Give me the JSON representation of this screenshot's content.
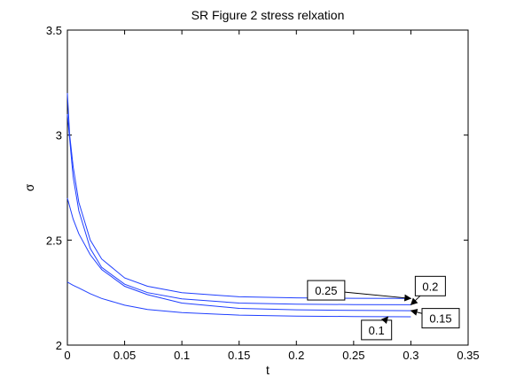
{
  "chart_data": {
    "type": "line",
    "title": "SR Figure 2 stress relxation",
    "xlabel": "t",
    "ylabel": "σ",
    "xlim": [
      0,
      0.35
    ],
    "ylim": [
      2,
      3.5
    ],
    "xticks": [
      0,
      0.05,
      0.1,
      0.15,
      0.2,
      0.25,
      0.3,
      0.35
    ],
    "xtick_labels": [
      "0",
      "0.05",
      "0.1",
      "0.15",
      "0.2",
      "0.25",
      "0.3",
      "0.35"
    ],
    "yticks": [
      2,
      2.5,
      3,
      3.5
    ],
    "ytick_labels": [
      "2",
      "2.5",
      "3",
      "3.5"
    ],
    "grid": false,
    "line_color": "#1f3fff",
    "series": [
      {
        "x": [
          0,
          0.005,
          0.01,
          0.02,
          0.03,
          0.05,
          0.07,
          0.1,
          0.15,
          0.2,
          0.25,
          0.3
        ],
        "y": [
          2.3,
          2.285,
          2.272,
          2.245,
          2.222,
          2.19,
          2.17,
          2.155,
          2.143,
          2.138,
          2.136,
          2.135
        ]
      },
      {
        "x": [
          0,
          0.005,
          0.01,
          0.02,
          0.03,
          0.05,
          0.07,
          0.1,
          0.15,
          0.2,
          0.25,
          0.3
        ],
        "y": [
          2.7,
          2.6,
          2.53,
          2.43,
          2.36,
          2.28,
          2.24,
          2.2,
          2.175,
          2.168,
          2.165,
          2.164
        ]
      },
      {
        "x": [
          0,
          0.005,
          0.01,
          0.02,
          0.03,
          0.05,
          0.07,
          0.1,
          0.15,
          0.2,
          0.25,
          0.3
        ],
        "y": [
          3.1,
          2.8,
          2.64,
          2.46,
          2.37,
          2.29,
          2.25,
          2.22,
          2.2,
          2.195,
          2.193,
          2.192
        ]
      },
      {
        "x": [
          0,
          0.002,
          0.005,
          0.01,
          0.02,
          0.03,
          0.05,
          0.07,
          0.1,
          0.15,
          0.2,
          0.25,
          0.3
        ],
        "y": [
          3.2,
          3.0,
          2.85,
          2.68,
          2.5,
          2.41,
          2.32,
          2.28,
          2.25,
          2.23,
          2.225,
          2.223,
          2.222
        ]
      }
    ],
    "annotations": [
      {
        "text": "0.25",
        "box_x": 0.226,
        "box_y": 2.261,
        "arrow_x": 0.3,
        "arrow_y": 2.222
      },
      {
        "text": "0.2",
        "box_x": 0.317,
        "box_y": 2.281,
        "arrow_x": 0.3,
        "arrow_y": 2.192
      },
      {
        "text": "0.15",
        "box_x": 0.326,
        "box_y": 2.128,
        "arrow_x": 0.3,
        "arrow_y": 2.164
      },
      {
        "text": "0.1",
        "box_x": 0.27,
        "box_y": 2.072,
        "arrow_x": 0.28,
        "arrow_y": 2.135
      }
    ]
  }
}
